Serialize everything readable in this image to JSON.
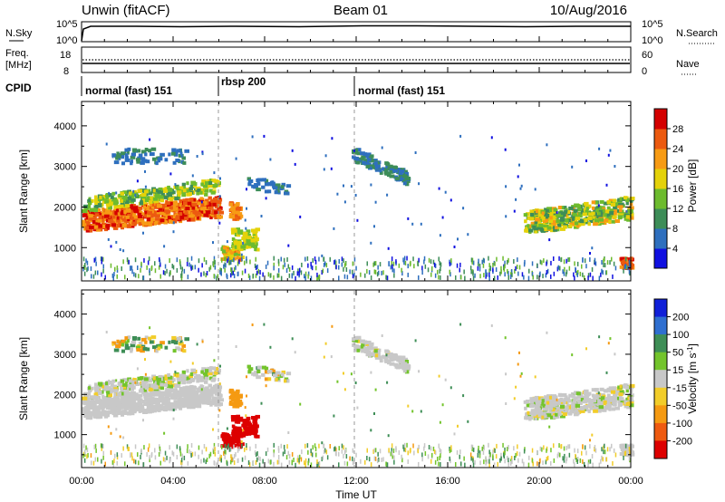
{
  "header": {
    "station": "Unwin (fitACF)",
    "beam": "Beam 01",
    "date": "10/Aug/2016"
  },
  "top_panel": {
    "left_label": "N.Sky",
    "left_ticks": [
      "10^5",
      "10^0"
    ],
    "right_ticks": [
      "10^5",
      "10^0"
    ],
    "right_label": "N.Search"
  },
  "freq_panel": {
    "left_label_1": "Freq.",
    "left_label_2": "[MHz]",
    "left_ticks": [
      "18",
      "8"
    ],
    "right_ticks": [
      "60",
      "0"
    ],
    "right_label": "Nave"
  },
  "cpid_panel": {
    "label": "CPID",
    "segments": [
      {
        "name": "normal (fast) 151",
        "start_hour": 0.0
      },
      {
        "name": "rbsp 200",
        "start_hour": 6.0
      },
      {
        "name": "normal (fast) 151",
        "start_hour": 12.0
      }
    ]
  },
  "x_axis": {
    "label": "Time UT",
    "ticks": [
      "00:00",
      "04:00",
      "08:00",
      "12:00",
      "16:00",
      "20:00",
      "00:00"
    ],
    "range_hours": [
      0,
      24
    ]
  },
  "y_axis": {
    "label": "Slant Range [km]",
    "ticks": [
      "1000",
      "2000",
      "3000",
      "4000"
    ],
    "range_km": [
      180,
      4600
    ]
  },
  "power_colorbar": {
    "label": "Power [dB]",
    "ticks": [
      "4",
      "8",
      "12",
      "16",
      "20",
      "24",
      "28"
    ],
    "colors": [
      "#1010e0",
      "#2e6fbe",
      "#3d8d58",
      "#6dbb2e",
      "#e4d20a",
      "#f79b14",
      "#ec5a10",
      "#d40000"
    ]
  },
  "velocity_colorbar": {
    "label": "Velocity [m s",
    "label_sup": "-1",
    "label_tail": "]",
    "ticks": [
      "200",
      "100",
      "50",
      "15",
      "-15",
      "-50",
      "-100",
      "-200"
    ],
    "colors": [
      "#1020d8",
      "#2f6fd0",
      "#3e8e56",
      "#73c42c",
      "#c8c8c8",
      "#f2cd2a",
      "#f59a12",
      "#ee5a10",
      "#dd0000"
    ]
  },
  "chart_data": [
    {
      "type": "heatmap",
      "title": "Power [dB]",
      "xlabel": "Time UT",
      "ylabel": "Slant Range [km]",
      "xlim_hours": [
        0,
        24
      ],
      "ylim_km": [
        180,
        4600
      ],
      "features": [
        {
          "region": "range band 1000-2100 km",
          "t_start": 0.0,
          "t_end": 6.0,
          "power_db": 26
        },
        {
          "region": "range band 1800-2600 km",
          "t_start": 0.0,
          "t_end": 6.0,
          "power_db": 16
        },
        {
          "region": "range band 700-1500 km",
          "t_start": 6.0,
          "t_end": 7.5,
          "power_db": 18
        },
        {
          "region": "range band 2600-3500 km",
          "t_start": 12.0,
          "t_end": 14.0,
          "power_db": 6
        },
        {
          "region": "range band 1400-2100 km",
          "t_start": 19.5,
          "t_end": 24.0,
          "power_db": 20
        },
        {
          "region": "near range 300-700 km",
          "t_start": 0.0,
          "t_end": 24.0,
          "power_db": 6
        }
      ]
    },
    {
      "type": "heatmap",
      "title": "Velocity [m s-1]",
      "xlabel": "Time UT",
      "ylabel": "Slant Range [km]",
      "xlim_hours": [
        0,
        24
      ],
      "ylim_km": [
        180,
        4600
      ],
      "features": [
        {
          "region": "range band 1000-2100 km",
          "t_start": 0.0,
          "t_end": 6.0,
          "velocity": 0
        },
        {
          "region": "range band 700-1500 km",
          "t_start": 6.0,
          "t_end": 7.5,
          "velocity": -200
        },
        {
          "region": "range band 2600-3500 km",
          "t_start": 12.0,
          "t_end": 14.0,
          "velocity": 0
        },
        {
          "region": "range band 1400-2100 km",
          "t_start": 19.5,
          "t_end": 24.0,
          "velocity": 0
        },
        {
          "region": "near range 300-700 km",
          "t_start": 0.0,
          "t_end": 24.0,
          "velocity": 15
        }
      ]
    }
  ]
}
